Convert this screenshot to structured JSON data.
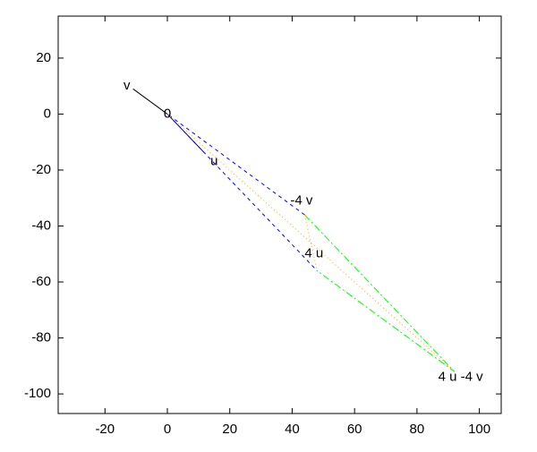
{
  "chart_data": {
    "type": "vector",
    "xlim": [
      -35,
      107
    ],
    "ylim": [
      -107,
      35
    ],
    "xticks": [
      -20,
      0,
      20,
      40,
      60,
      80,
      100
    ],
    "yticks": [
      -100,
      -80,
      -60,
      -40,
      -20,
      0,
      20
    ],
    "series": [
      {
        "color": "#000000",
        "style": "solid",
        "x": [
          0,
          -11
        ],
        "y": [
          0,
          9
        ]
      },
      {
        "color": "#00008b",
        "style": "solid",
        "x": [
          0,
          12
        ],
        "y": [
          0,
          -14
        ]
      },
      {
        "color": "#0000ff",
        "style": "dashed",
        "x": [
          44,
          0,
          48
        ],
        "y": [
          -36,
          0,
          -56
        ]
      },
      {
        "color": "#00ff00",
        "style": "dashdot",
        "x": [
          44,
          92,
          48
        ],
        "y": [
          -36,
          -92,
          -56
        ]
      },
      {
        "color": "#ffa500",
        "style": "dotted",
        "x": [
          0,
          92
        ],
        "y": [
          0,
          -92
        ]
      },
      {
        "color": "#ffa500",
        "style": "dotted",
        "x": [
          44,
          48
        ],
        "y": [
          -36,
          -56
        ]
      }
    ],
    "labels": [
      {
        "text": "v",
        "x": -13,
        "y": 10
      },
      {
        "text": "0",
        "x": 0,
        "y": 0
      },
      {
        "text": "u",
        "x": 15,
        "y": -17
      },
      {
        "text": "-4 v",
        "x": 43,
        "y": -31
      },
      {
        "text": "4 u",
        "x": 47,
        "y": -50
      },
      {
        "text": "4 u -4 v",
        "x": 94,
        "y": -94
      }
    ]
  }
}
